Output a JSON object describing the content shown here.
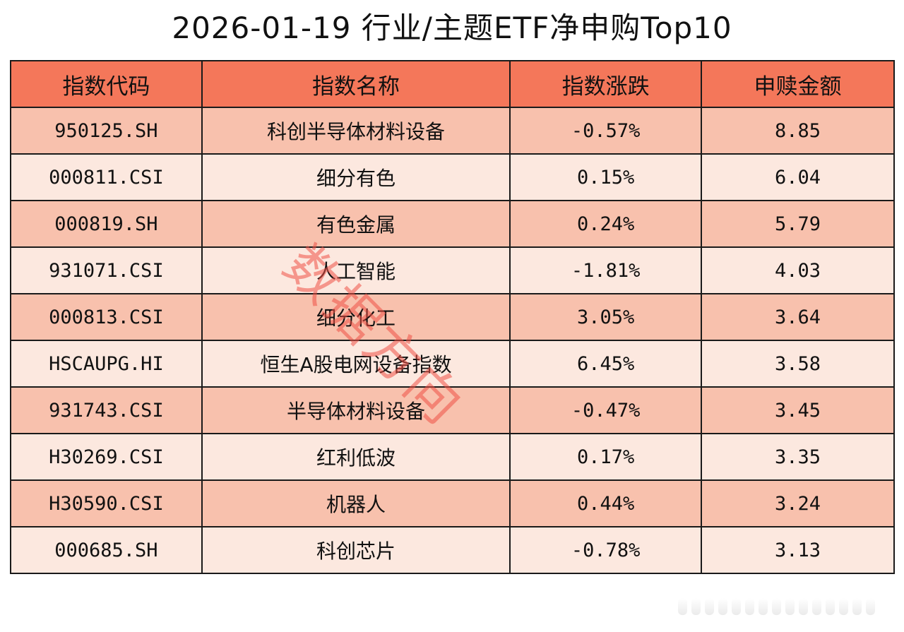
{
  "title": "2026-01-19 行业/主题ETF净申购Top10",
  "table": {
    "headers": [
      "指数代码",
      "指数名称",
      "指数涨跌",
      "申赎金额"
    ],
    "rows": [
      {
        "code": "950125.SH",
        "name": "科创半导体材料设备",
        "change": "-0.57%",
        "amount": "8.85"
      },
      {
        "code": "000811.CSI",
        "name": "细分有色",
        "change": "0.15%",
        "amount": "6.04"
      },
      {
        "code": "000819.SH",
        "name": "有色金属",
        "change": "0.24%",
        "amount": "5.79"
      },
      {
        "code": "931071.CSI",
        "name": "人工智能",
        "change": "-1.81%",
        "amount": "4.03"
      },
      {
        "code": "000813.CSI",
        "name": "细分化工",
        "change": "3.05%",
        "amount": "3.64"
      },
      {
        "code": "HSCAUPG.HI",
        "name": "恒生A股电网设备指数",
        "change": "6.45%",
        "amount": "3.58"
      },
      {
        "code": "931743.CSI",
        "name": "半导体材料设备",
        "change": "-0.47%",
        "amount": "3.45"
      },
      {
        "code": "H30269.CSI",
        "name": "红利低波",
        "change": "0.17%",
        "amount": "3.35"
      },
      {
        "code": "H30590.CSI",
        "name": "机器人",
        "change": "0.44%",
        "amount": "3.24"
      },
      {
        "code": "000685.SH",
        "name": "科创芯片",
        "change": "-0.78%",
        "amount": "3.13"
      }
    ]
  },
  "watermark": "数据方向",
  "colors": {
    "header_bg": "#f4775a",
    "row_odd_bg": "#f8c1ad",
    "row_even_bg": "#fce8df",
    "watermark": "#ee5046"
  }
}
